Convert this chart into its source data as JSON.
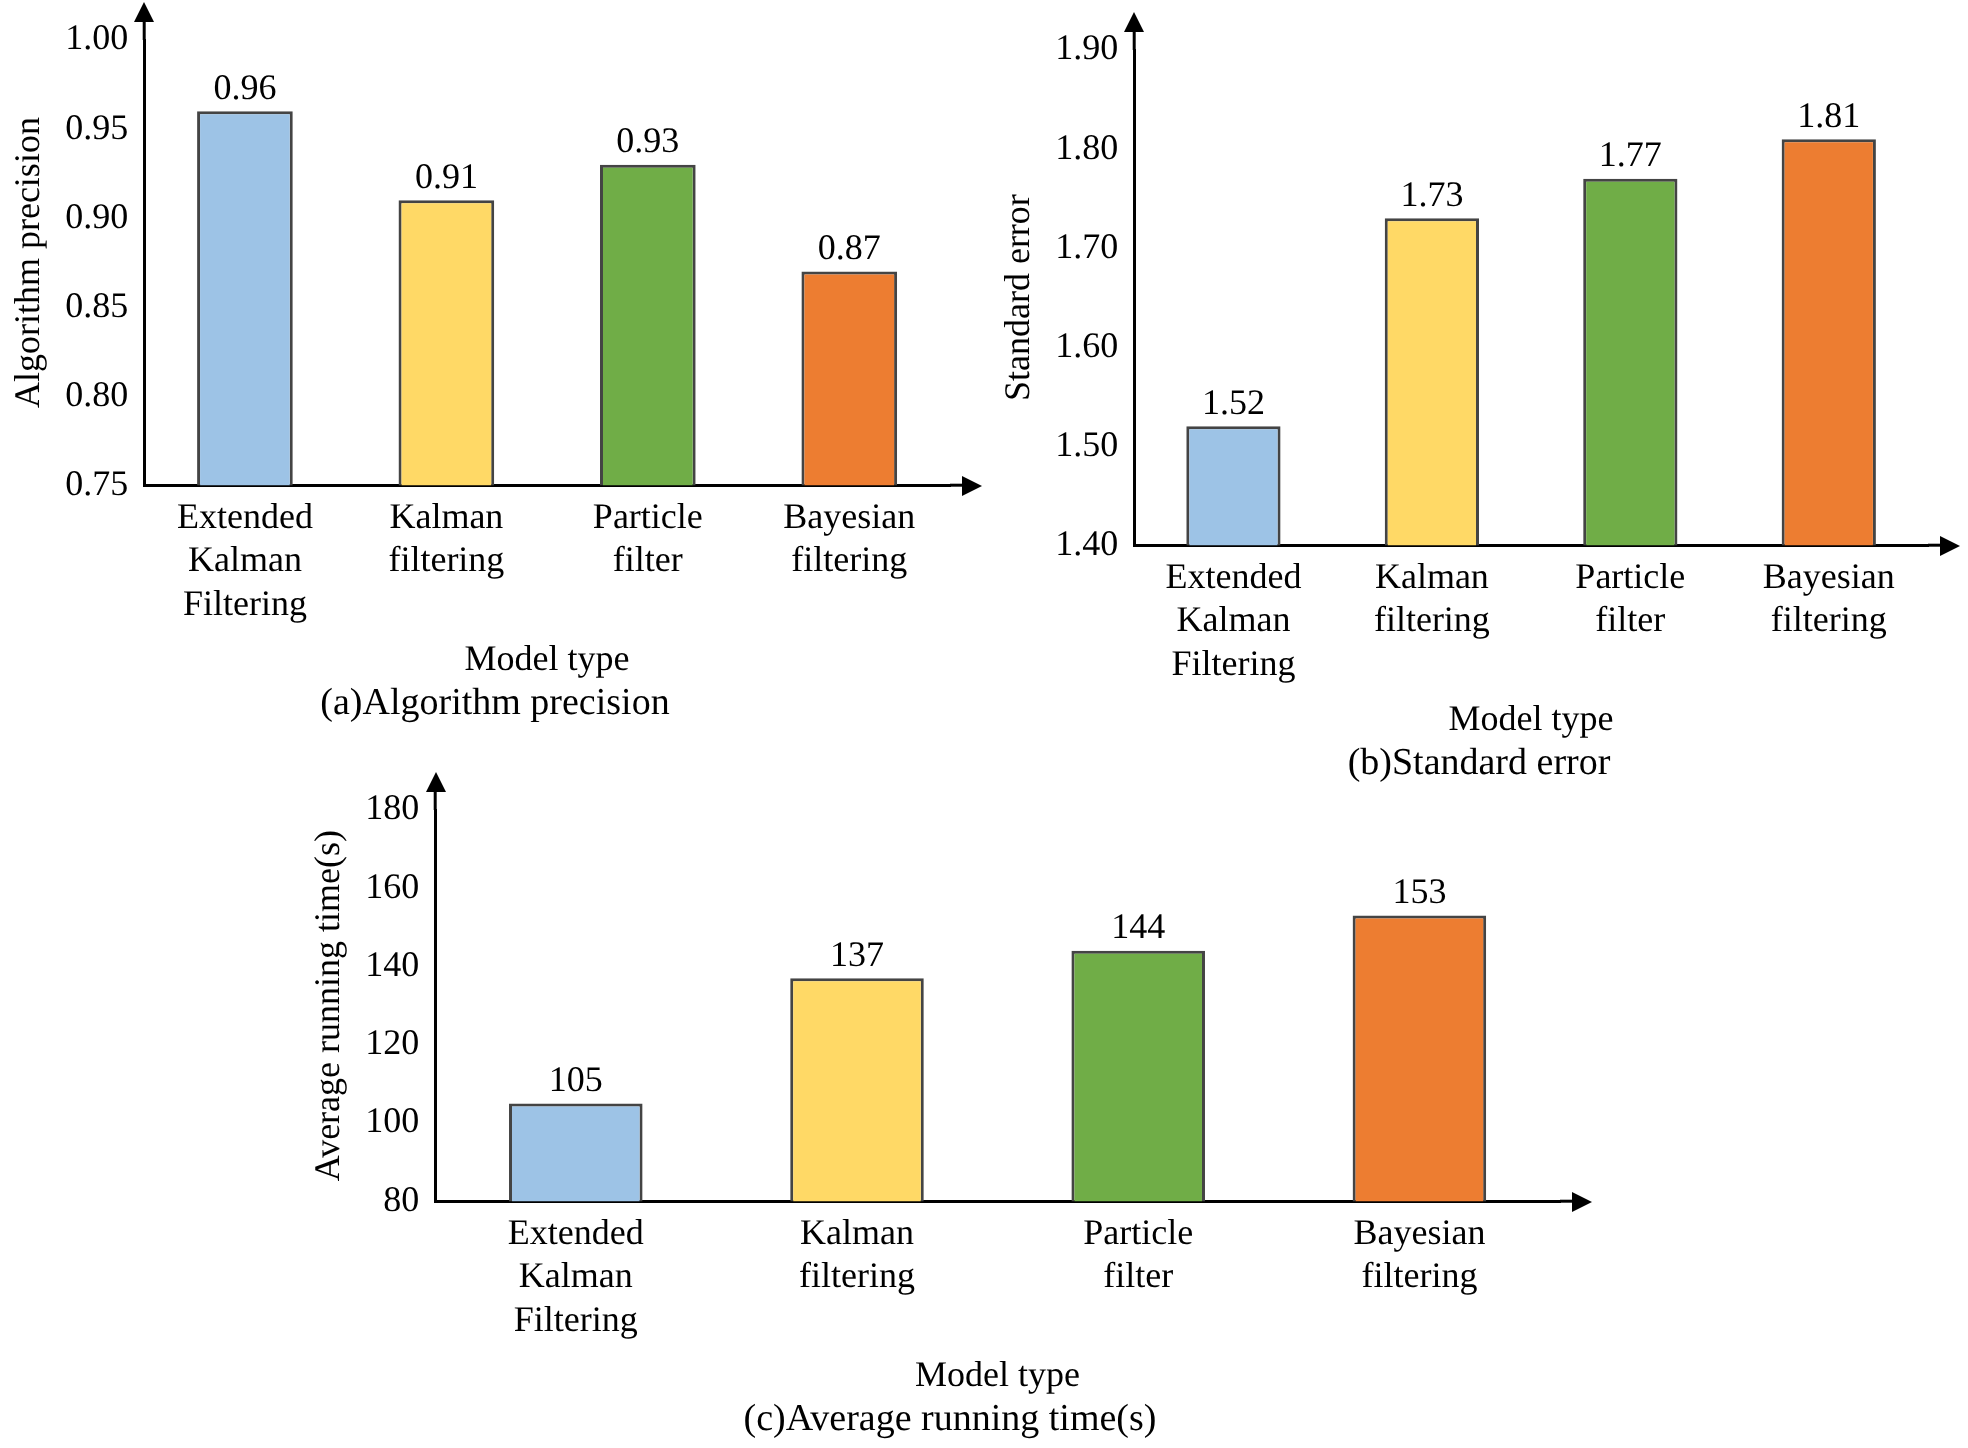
{
  "chart_data": [
    {
      "type": "bar",
      "title": "(a)Algorithm precision",
      "xlabel": "Model type",
      "ylabel": "Algorithm precision",
      "categories": [
        "Extended Kalman Filtering",
        "Kalman filtering",
        "Particle filter",
        "Bayesian filtering"
      ],
      "values": [
        0.96,
        0.91,
        0.93,
        0.87
      ],
      "colors": [
        "#9dc3e6",
        "#ffd966",
        "#70ad47",
        "#ed7d31"
      ],
      "ylim": [
        0.75,
        1.0
      ],
      "yticks": [
        {
          "value": 0.75,
          "label": "0.75"
        },
        {
          "value": 0.8,
          "label": "0.80"
        },
        {
          "value": 0.85,
          "label": "0.85"
        },
        {
          "value": 0.9,
          "label": "0.90"
        },
        {
          "value": 0.95,
          "label": "0.95"
        },
        {
          "value": 1.0,
          "label": "1.00"
        }
      ],
      "data_labels": true,
      "grid": false,
      "legend": false
    },
    {
      "type": "bar",
      "title": "(b)Standard error",
      "xlabel": "Model type",
      "ylabel": "Standard error",
      "categories": [
        "Extended Kalman Filtering",
        "Kalman filtering",
        "Particle filter",
        "Bayesian filtering"
      ],
      "values": [
        1.52,
        1.73,
        1.77,
        1.81
      ],
      "colors": [
        "#9dc3e6",
        "#ffd966",
        "#70ad47",
        "#ed7d31"
      ],
      "ylim": [
        1.4,
        1.9
      ],
      "yticks": [
        {
          "value": 1.4,
          "label": "1.40"
        },
        {
          "value": 1.5,
          "label": "1.50"
        },
        {
          "value": 1.6,
          "label": "1.60"
        },
        {
          "value": 1.7,
          "label": "1.70"
        },
        {
          "value": 1.8,
          "label": "1.80"
        },
        {
          "value": 1.9,
          "label": "1.90"
        }
      ],
      "data_labels": true,
      "grid": false,
      "legend": false
    },
    {
      "type": "bar",
      "title": "(c)Average running time(s)",
      "xlabel": "Model type",
      "ylabel": "Average running time(s)",
      "categories": [
        "Extended Kalman Filtering",
        "Kalman filtering",
        "Particle filter",
        "Bayesian filtering"
      ],
      "values": [
        105,
        137,
        144,
        153
      ],
      "colors": [
        "#9dc3e6",
        "#ffd966",
        "#70ad47",
        "#ed7d31"
      ],
      "ylim": [
        80,
        180
      ],
      "yticks": [
        80,
        100,
        120,
        140,
        160,
        180
      ],
      "data_labels": true,
      "grid": false,
      "legend": false
    }
  ]
}
